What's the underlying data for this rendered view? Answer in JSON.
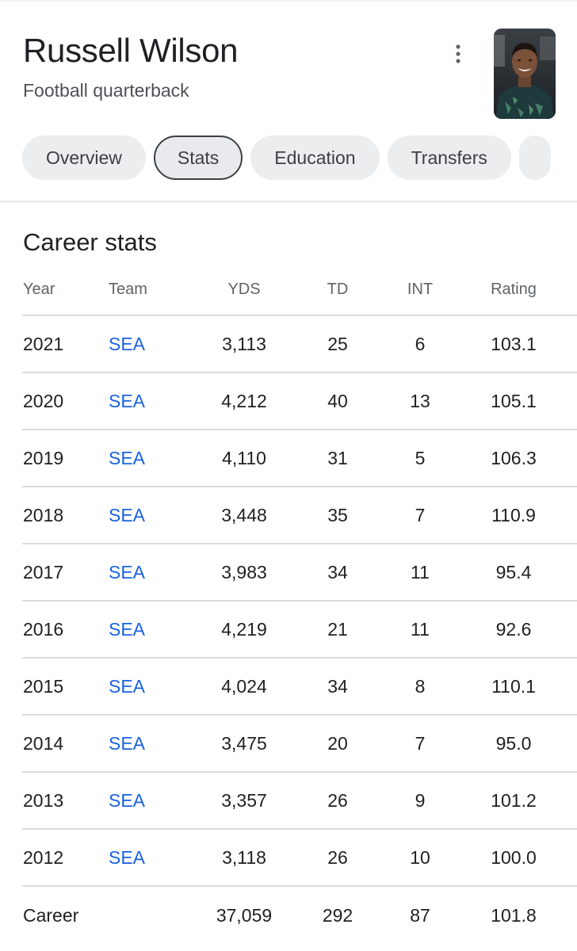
{
  "header": {
    "title": "Russell Wilson",
    "subtitle": "Football quarterback",
    "more_icon": "more-vert-icon",
    "photo_alt": "Russell Wilson"
  },
  "tabs": [
    {
      "label": "Overview",
      "active": false
    },
    {
      "label": "Stats",
      "active": true
    },
    {
      "label": "Education",
      "active": false
    },
    {
      "label": "Transfers",
      "active": false
    }
  ],
  "stats": {
    "title": "Career stats",
    "columns": [
      "Year",
      "Team",
      "YDS",
      "TD",
      "INT",
      "Rating"
    ],
    "rows": [
      {
        "year": "2021",
        "team": "SEA",
        "yds": "3,113",
        "td": "25",
        "int": "6",
        "rating": "103.1"
      },
      {
        "year": "2020",
        "team": "SEA",
        "yds": "4,212",
        "td": "40",
        "int": "13",
        "rating": "105.1"
      },
      {
        "year": "2019",
        "team": "SEA",
        "yds": "4,110",
        "td": "31",
        "int": "5",
        "rating": "106.3"
      },
      {
        "year": "2018",
        "team": "SEA",
        "yds": "3,448",
        "td": "35",
        "int": "7",
        "rating": "110.9"
      },
      {
        "year": "2017",
        "team": "SEA",
        "yds": "3,983",
        "td": "34",
        "int": "11",
        "rating": "95.4"
      },
      {
        "year": "2016",
        "team": "SEA",
        "yds": "4,219",
        "td": "21",
        "int": "11",
        "rating": "92.6"
      },
      {
        "year": "2015",
        "team": "SEA",
        "yds": "4,024",
        "td": "34",
        "int": "8",
        "rating": "110.1"
      },
      {
        "year": "2014",
        "team": "SEA",
        "yds": "3,475",
        "td": "20",
        "int": "7",
        "rating": "95.0"
      },
      {
        "year": "2013",
        "team": "SEA",
        "yds": "3,357",
        "td": "26",
        "int": "9",
        "rating": "101.2"
      },
      {
        "year": "2012",
        "team": "SEA",
        "yds": "3,118",
        "td": "26",
        "int": "10",
        "rating": "100.0"
      }
    ],
    "career": {
      "label": "Career",
      "yds": "37,059",
      "td": "292",
      "int": "87",
      "rating": "101.8"
    }
  },
  "colors": {
    "link": "#1a62e1",
    "chip_bg": "#ebedef",
    "divider": "#dadce0",
    "text": "#202124"
  }
}
